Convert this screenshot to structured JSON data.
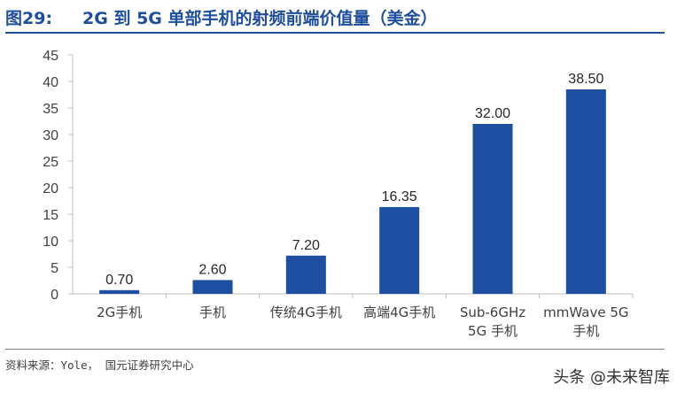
{
  "figure_label": "图29:",
  "figure_title": "2G 到 5G 单部手机的射频前端价值量（美金）",
  "source_text": "资料来源：Yole， 国元证券研究中心",
  "watermark_text": "头条 @未来智库",
  "colors": {
    "bar": "#1e4fa3",
    "title": "#1f4e9c",
    "axis": "#bfbfbf",
    "text": "#404040"
  },
  "chart_data": {
    "type": "bar",
    "categories": [
      [
        "2G手机"
      ],
      [
        "手机"
      ],
      [
        "传统4G手机"
      ],
      [
        "高端4G手机"
      ],
      [
        "Sub-6GHz",
        "5G 手机"
      ],
      [
        "mmWave 5G",
        "手机"
      ]
    ],
    "values": [
      0.7,
      2.6,
      7.2,
      16.35,
      32.0,
      38.5
    ],
    "data_labels": [
      "0.70",
      "2.60",
      "7.20",
      "16.35",
      "32.00",
      "38.50"
    ],
    "yticks": [
      "0",
      "5",
      "10",
      "15",
      "20",
      "25",
      "30",
      "35",
      "40",
      "45"
    ],
    "ylim": [
      0,
      45
    ],
    "grid": false,
    "legend": "none"
  }
}
